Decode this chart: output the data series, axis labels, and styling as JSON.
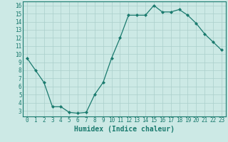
{
  "x": [
    0,
    1,
    2,
    3,
    4,
    5,
    6,
    7,
    8,
    9,
    10,
    11,
    12,
    13,
    14,
    15,
    16,
    17,
    18,
    19,
    20,
    21,
    22,
    23
  ],
  "y": [
    9.5,
    8.0,
    6.5,
    3.5,
    3.5,
    2.8,
    2.7,
    2.8,
    5.0,
    6.5,
    9.5,
    12.0,
    14.8,
    14.8,
    14.8,
    16.0,
    15.2,
    15.2,
    15.5,
    14.8,
    13.8,
    12.5,
    11.5,
    10.5
  ],
  "line_color": "#1a7a6e",
  "marker": "D",
  "marker_size": 2.0,
  "bg_color": "#cce9e5",
  "grid_color": "#aacfcb",
  "xlabel": "Humidex (Indice chaleur)",
  "xlim": [
    -0.5,
    23.5
  ],
  "ylim": [
    2.3,
    16.5
  ],
  "xticks": [
    0,
    1,
    2,
    3,
    4,
    5,
    6,
    7,
    8,
    9,
    10,
    11,
    12,
    13,
    14,
    15,
    16,
    17,
    18,
    19,
    20,
    21,
    22,
    23
  ],
  "yticks": [
    3,
    4,
    5,
    6,
    7,
    8,
    9,
    10,
    11,
    12,
    13,
    14,
    15,
    16
  ],
  "tick_label_fontsize": 5.5,
  "xlabel_fontsize": 7.0
}
